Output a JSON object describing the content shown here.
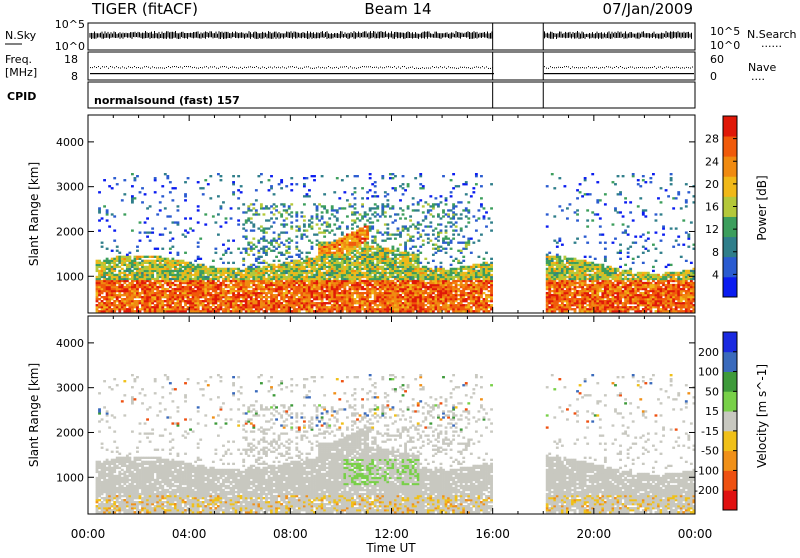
{
  "header": {
    "station": "TIGER (fitACF)",
    "beam": "Beam 14",
    "date": "07/Jan/2009"
  },
  "summary_panels": {
    "nsky": {
      "left_label": "N.Sky",
      "right_label": "N.Search",
      "ticks_left": [
        "10^5",
        "10^0"
      ],
      "ticks_right": [
        "10^5",
        "10^0"
      ],
      "right_marker": "......"
    },
    "freq": {
      "left_label_1": "Freq.",
      "left_label_2": "[MHz]",
      "ticks_left": [
        "18",
        "8"
      ],
      "right_label": "Nave",
      "ticks_right": [
        "60",
        "0"
      ],
      "right_marker": "...."
    },
    "cpid": {
      "label": "CPID",
      "value": "normalsound (fast) 157"
    }
  },
  "chart_data": [
    {
      "type": "heatmap",
      "title": "Power",
      "xlabel": "Time UT",
      "ylabel": "Slant Range [km]",
      "xlim": [
        0,
        24
      ],
      "ylim": [
        180,
        4600
      ],
      "y_ticks": [
        1000,
        2000,
        3000,
        4000
      ],
      "x_tick_labels": [
        "00:00",
        "04:00",
        "08:00",
        "12:00",
        "16:00",
        "20:00",
        "00:00"
      ],
      "data_gap_hours": [
        16.0,
        18.0
      ],
      "colorbar": {
        "label": "Power [dB]",
        "ticks": [
          4,
          8,
          12,
          16,
          20,
          24,
          28
        ],
        "range": [
          0,
          32
        ],
        "colors": [
          "#0a1cf0",
          "#2a5bd0",
          "#2f7e8a",
          "#3c9e5c",
          "#b4c83a",
          "#f0b818",
          "#f08a10",
          "#f05a0a",
          "#e01808"
        ]
      }
    },
    {
      "type": "heatmap",
      "title": "Velocity",
      "xlabel": "Time UT",
      "ylabel": "Slant Range [km]",
      "xlim": [
        0,
        24
      ],
      "ylim": [
        180,
        4600
      ],
      "y_ticks": [
        1000,
        2000,
        3000,
        4000
      ],
      "x_tick_labels": [
        "00:00",
        "04:00",
        "08:00",
        "12:00",
        "16:00",
        "20:00",
        "00:00"
      ],
      "data_gap_hours": [
        16.0,
        18.0
      ],
      "colorbar": {
        "label": "Velocity [m s^-1]",
        "ticks": [
          -200,
          -100,
          -50,
          -15,
          15,
          50,
          100,
          200
        ],
        "colors": [
          "#e01010",
          "#ee5010",
          "#f09018",
          "#f0c018",
          "#c8c8c0",
          "#78d048",
          "#3e9a3a",
          "#3a6abc",
          "#1a2ae0"
        ]
      }
    }
  ],
  "xaxis": {
    "ticks": [
      "00:00",
      "04:00",
      "08:00",
      "12:00",
      "16:00",
      "20:00",
      "00:00"
    ],
    "label": "Time UT"
  }
}
